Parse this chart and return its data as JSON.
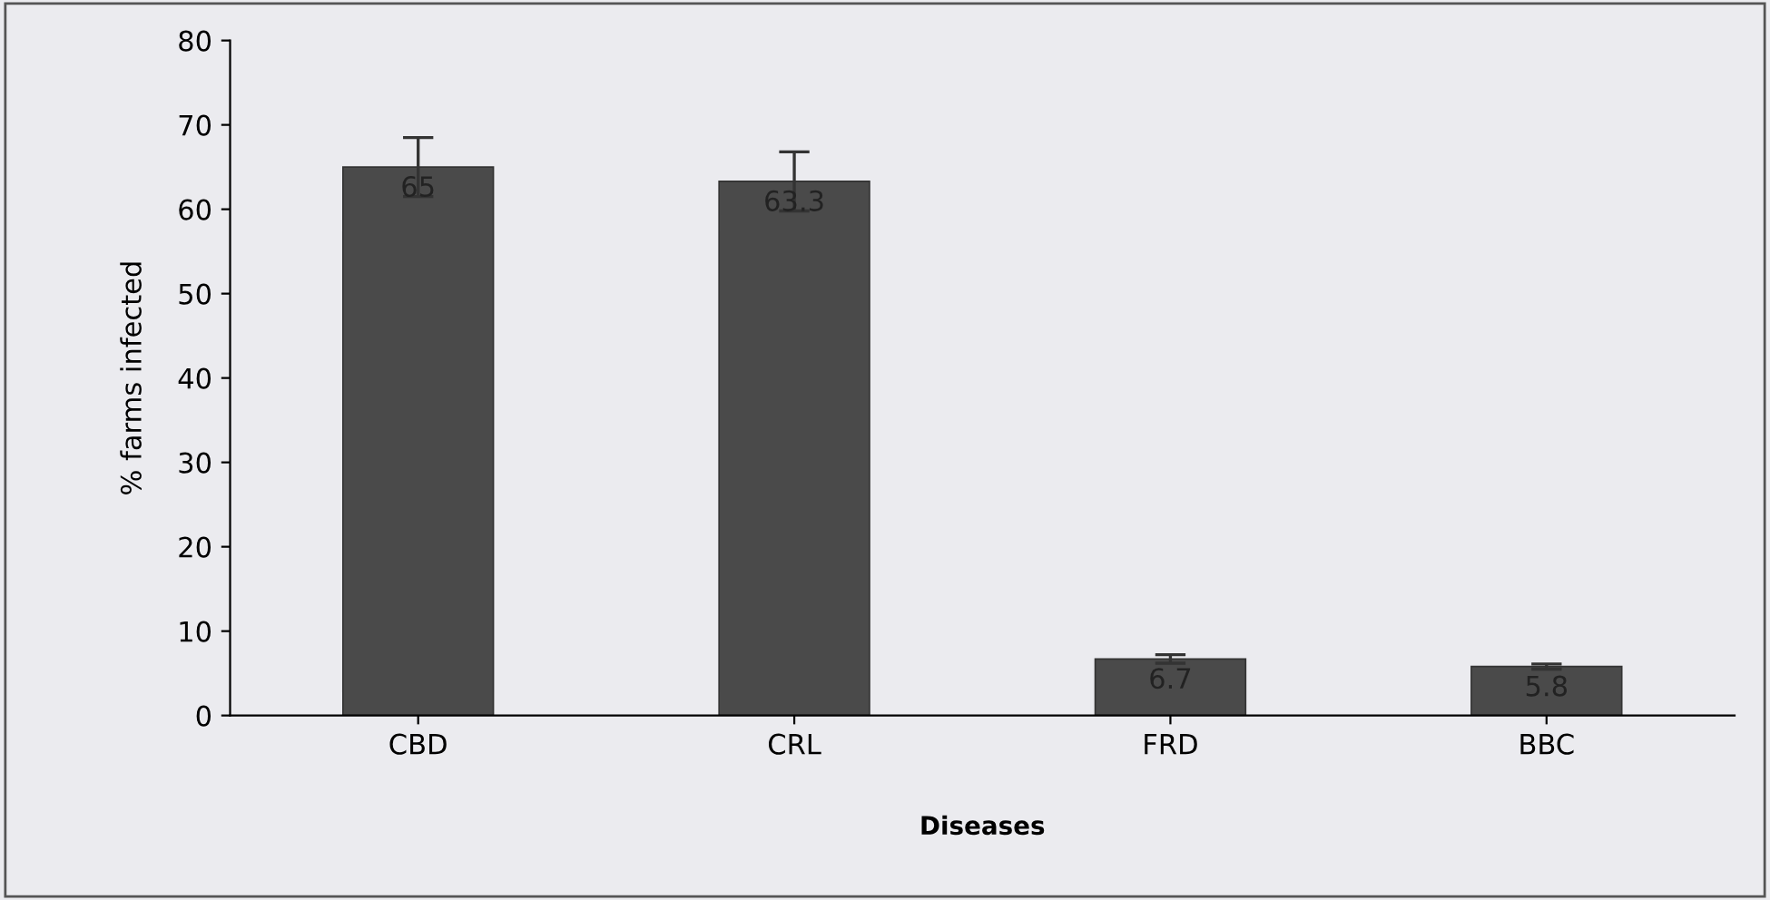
{
  "chart_data": {
    "type": "bar",
    "xlabel": "Diseases",
    "ylabel": "% farms infected",
    "categories": [
      "CBD",
      "CRL",
      "FRD",
      "BBC"
    ],
    "values": [
      65,
      63.3,
      6.7,
      5.8
    ],
    "errors": [
      3.5,
      3.5,
      0.5,
      0.3
    ],
    "color": "#4a4a4a",
    "ylim": [
      0,
      80
    ],
    "yticks": [
      0,
      10,
      20,
      30,
      40,
      50,
      60,
      70,
      80
    ],
    "data_labels": true,
    "grid": false
  }
}
